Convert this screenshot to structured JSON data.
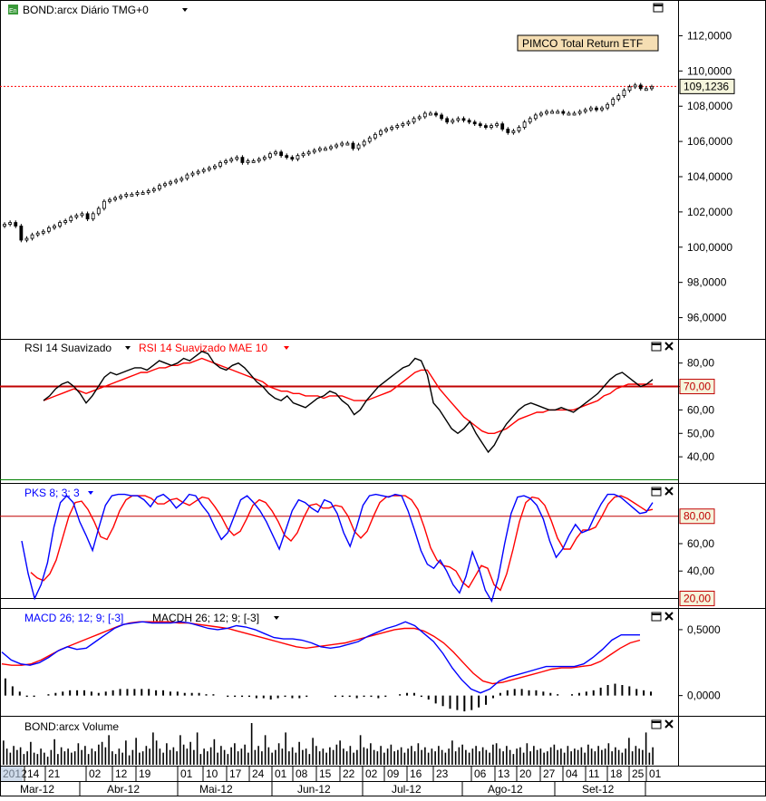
{
  "instrument_title": "BOND:arcx Diário TMG+0",
  "legend_box": "PIMCO Total Return ETF",
  "last_price_label": "109,1236",
  "panels": {
    "rsi": {
      "label_a": "RSI 14 Suavizado",
      "label_b": "RSI 14 Suavizado MAE 10",
      "level_label": "70,00"
    },
    "pks": {
      "label": "PKS 8; 3; 3",
      "upper_label": "80,00",
      "lower_label": "20,00"
    },
    "macd": {
      "label_a": "MACD 26; 12; 9; [-3]",
      "label_b": "MACDH 26; 12; 9; [-3]"
    },
    "volume": {
      "label": "BOND:arcx Volume"
    }
  },
  "colors": {
    "price": "#000000",
    "signal": "#ff0000",
    "blue_line": "#0000ff",
    "level_line": "#c00000",
    "grid_green": "#008000"
  },
  "chart_data": [
    {
      "type": "candlestick",
      "title": "BOND:arcx Diário TMG+0",
      "ylim": [
        95,
        113
      ],
      "y_ticks": [
        "112,0000",
        "110,0000",
        "108,0000",
        "106,0000",
        "104,0000",
        "102,0000",
        "100,0000",
        "98,0000",
        "96,0000"
      ],
      "y_tick_values": [
        112,
        110,
        108,
        106,
        104,
        102,
        100,
        98,
        96
      ],
      "last_value": 109.1236,
      "close": [
        101.3,
        101.4,
        101.2,
        100.4,
        100.5,
        100.7,
        100.8,
        100.9,
        101.1,
        101.2,
        101.4,
        101.5,
        101.7,
        101.8,
        101.9,
        101.6,
        101.9,
        102.2,
        102.6,
        102.7,
        102.8,
        102.9,
        103.0,
        103.0,
        103.1,
        103.1,
        103.2,
        103.3,
        103.5,
        103.6,
        103.7,
        103.8,
        103.9,
        104.1,
        104.2,
        104.3,
        104.4,
        104.5,
        104.6,
        104.8,
        104.9,
        105.0,
        105.1,
        104.8,
        104.9,
        104.9,
        105.0,
        105.1,
        105.3,
        105.4,
        105.2,
        105.1,
        105.0,
        105.2,
        105.3,
        105.4,
        105.5,
        105.6,
        105.6,
        105.7,
        105.8,
        105.9,
        105.9,
        105.6,
        105.8,
        106.0,
        106.2,
        106.4,
        106.6,
        106.7,
        106.8,
        106.9,
        107.0,
        107.1,
        107.3,
        107.4,
        107.6,
        107.6,
        107.5,
        107.3,
        107.1,
        107.2,
        107.3,
        107.2,
        107.1,
        107.0,
        106.9,
        106.8,
        106.9,
        107.0,
        106.7,
        106.5,
        106.6,
        106.8,
        107.1,
        107.3,
        107.5,
        107.6,
        107.7,
        107.7,
        107.7,
        107.6,
        107.6,
        107.6,
        107.7,
        107.8,
        107.9,
        107.8,
        107.9,
        108.1,
        108.4,
        108.6,
        108.9,
        109.1,
        109.2,
        109.0,
        109.0,
        109.1
      ],
      "x_day_ticks": [
        "2012",
        "14",
        "21",
        "02",
        "12",
        "19",
        "01",
        "10",
        "17",
        "24",
        "01",
        "08",
        "15",
        "22",
        "02",
        "09",
        "16",
        "23",
        "06",
        "13",
        "20",
        "27",
        "04",
        "11",
        "18",
        "25",
        "01"
      ],
      "x_month_labels": [
        "Mar-12",
        "Abr-12",
        "Mai-12",
        "Jun-12",
        "Jul-12",
        "Ago-12",
        "Set-12"
      ]
    },
    {
      "type": "line",
      "title": "RSI 14 Suavizado",
      "ylim": [
        30,
        88
      ],
      "y_ticks": [
        "80,00",
        "70,00",
        "60,00",
        "50,00",
        "40,00"
      ],
      "y_tick_values": [
        80,
        70,
        60,
        50,
        40
      ],
      "level": 70,
      "series": [
        {
          "name": "RSI 14 Suavizado",
          "values": [
            64,
            66,
            69,
            71,
            72,
            70,
            67,
            63,
            66,
            70,
            74,
            76,
            75,
            76,
            77,
            78,
            78,
            77,
            79,
            81,
            80,
            79,
            80,
            82,
            81,
            83,
            85,
            84,
            80,
            78,
            77,
            79,
            80,
            78,
            75,
            72,
            70,
            67,
            65,
            64,
            66,
            63,
            62,
            61,
            63,
            65,
            66,
            68,
            67,
            64,
            62,
            58,
            60,
            64,
            67,
            70,
            72,
            74,
            76,
            78,
            79,
            82,
            81,
            75,
            63,
            60,
            56,
            52,
            50,
            52,
            55,
            50,
            46,
            42,
            45,
            50,
            54,
            57,
            60,
            62,
            63,
            62,
            61,
            60,
            60,
            61,
            60,
            59,
            61,
            63,
            65,
            67,
            70,
            73,
            75,
            76,
            74,
            72,
            70,
            71,
            73
          ]
        },
        {
          "name": "RSI 14 Suavizado MAE 10",
          "values": [
            64,
            65,
            66,
            67,
            68,
            69,
            68,
            67,
            68,
            69,
            70,
            71,
            72,
            73,
            74,
            75,
            76,
            76,
            77,
            78,
            78,
            79,
            79,
            80,
            80,
            81,
            82,
            81,
            80,
            79,
            78,
            77,
            76,
            75,
            74,
            73,
            72,
            70,
            69,
            68,
            68,
            67,
            67,
            66,
            66,
            66,
            65,
            66,
            66,
            66,
            65,
            64,
            64,
            64,
            65,
            66,
            67,
            68,
            70,
            72,
            74,
            76,
            77,
            77,
            73,
            69,
            66,
            63,
            60,
            57,
            55,
            53,
            51,
            50,
            50,
            51,
            52,
            54,
            56,
            57,
            58,
            59,
            59,
            60,
            60,
            60,
            60,
            60,
            61,
            62,
            63,
            64,
            66,
            67,
            69,
            70,
            71,
            71,
            71,
            71,
            71
          ]
        }
      ]
    },
    {
      "type": "line",
      "title": "PKS 8; 3; 3",
      "ylim": [
        15,
        101
      ],
      "y_ticks": [
        "60,00",
        "40,00"
      ],
      "y_tick_values": [
        60,
        40
      ],
      "levels": [
        80,
        20
      ],
      "series": [
        {
          "name": "PKS 8; 3; 3",
          "values": [
            62,
            38,
            20,
            30,
            46,
            72,
            90,
            95,
            90,
            76,
            66,
            55,
            72,
            88,
            95,
            96,
            96,
            95,
            95,
            92,
            87,
            94,
            96,
            92,
            86,
            90,
            96,
            95,
            88,
            82,
            72,
            63,
            68,
            80,
            92,
            95,
            90,
            84,
            76,
            66,
            56,
            70,
            84,
            92,
            90,
            86,
            83,
            92,
            90,
            82,
            68,
            58,
            72,
            88,
            95,
            96,
            95,
            94,
            96,
            95,
            84,
            70,
            55,
            45,
            42,
            48,
            40,
            30,
            24,
            36,
            54,
            42,
            26,
            18,
            35,
            60,
            82,
            94,
            95,
            93,
            88,
            78,
            62,
            50,
            56,
            66,
            74,
            68,
            70,
            80,
            89,
            96,
            96,
            94,
            90,
            86,
            82,
            83,
            90
          ]
        },
        {
          "name": "Signal",
          "values": [
            39,
            35,
            33,
            38,
            48,
            64,
            80,
            90,
            91,
            85,
            76,
            65,
            63,
            72,
            84,
            92,
            95,
            95,
            95,
            93,
            89,
            89,
            92,
            93,
            90,
            88,
            91,
            94,
            93,
            87,
            80,
            71,
            66,
            69,
            78,
            88,
            92,
            90,
            84,
            76,
            66,
            62,
            68,
            79,
            88,
            89,
            86,
            86,
            88,
            87,
            80,
            69,
            64,
            69,
            80,
            90,
            94,
            95,
            95,
            95,
            92,
            85,
            72,
            57,
            48,
            44,
            43,
            40,
            32,
            28,
            36,
            44,
            42,
            30,
            26,
            38,
            56,
            76,
            90,
            94,
            93,
            88,
            77,
            64,
            56,
            56,
            64,
            70,
            70,
            72,
            80,
            89,
            94,
            95,
            93,
            90,
            87,
            84,
            85
          ]
        }
      ]
    },
    {
      "type": "line",
      "title": "MACD 26; 12; 9; [-3]",
      "ylim": [
        -0.14,
        0.63
      ],
      "y_ticks": [
        "0,5000",
        "0,0000"
      ],
      "y_tick_values": [
        0.5,
        0.0
      ],
      "series": [
        {
          "name": "MACD 26; 12; 9; [-3]",
          "values": [
            0.33,
            0.27,
            0.24,
            0.23,
            0.25,
            0.29,
            0.34,
            0.37,
            0.35,
            0.36,
            0.41,
            0.46,
            0.51,
            0.54,
            0.55,
            0.56,
            0.55,
            0.55,
            0.55,
            0.56,
            0.55,
            0.53,
            0.51,
            0.5,
            0.51,
            0.53,
            0.52,
            0.5,
            0.47,
            0.44,
            0.43,
            0.43,
            0.42,
            0.4,
            0.37,
            0.36,
            0.37,
            0.39,
            0.41,
            0.45,
            0.48,
            0.51,
            0.53,
            0.56,
            0.53,
            0.47,
            0.41,
            0.32,
            0.21,
            0.12,
            0.05,
            0.02,
            0.05,
            0.11,
            0.14,
            0.16,
            0.18,
            0.2,
            0.22,
            0.22,
            0.22,
            0.22,
            0.24,
            0.29,
            0.35,
            0.42,
            0.46,
            0.46,
            0.46
          ]
        },
        {
          "name": "Signal",
          "values": [
            0.24,
            0.23,
            0.23,
            0.24,
            0.27,
            0.31,
            0.35,
            0.38,
            0.41,
            0.44,
            0.47,
            0.5,
            0.53,
            0.55,
            0.56,
            0.56,
            0.56,
            0.56,
            0.55,
            0.55,
            0.54,
            0.53,
            0.52,
            0.51,
            0.49,
            0.47,
            0.45,
            0.43,
            0.41,
            0.39,
            0.37,
            0.36,
            0.37,
            0.38,
            0.39,
            0.4,
            0.42,
            0.44,
            0.46,
            0.48,
            0.5,
            0.51,
            0.51,
            0.49,
            0.45,
            0.4,
            0.33,
            0.25,
            0.17,
            0.11,
            0.09,
            0.1,
            0.12,
            0.14,
            0.16,
            0.18,
            0.2,
            0.21,
            0.21,
            0.22,
            0.23,
            0.26,
            0.31,
            0.36,
            0.4,
            0.42
          ]
        },
        {
          "name": "MACDH 26; 12; 9; [-3]",
          "values": [
            0.13,
            0.07,
            0.03,
            -0.01,
            -0.01,
            0.0,
            0.01,
            0.02,
            0.03,
            0.04,
            0.04,
            0.04,
            0.03,
            0.02,
            0.03,
            0.04,
            0.05,
            0.05,
            0.05,
            0.05,
            0.05,
            0.04,
            0.04,
            0.03,
            0.03,
            0.02,
            0.02,
            0.02,
            0.01,
            0.01,
            0.0,
            -0.01,
            -0.01,
            -0.01,
            -0.01,
            -0.02,
            -0.02,
            -0.03,
            -0.02,
            -0.01,
            -0.02,
            -0.02,
            -0.01,
            0.0,
            0.0,
            0.0,
            -0.01,
            -0.01,
            -0.01,
            -0.02,
            -0.01,
            -0.01,
            -0.02,
            -0.01,
            0.0,
            0.01,
            0.02,
            0.02,
            -0.01,
            -0.03,
            -0.06,
            -0.08,
            -0.1,
            -0.11,
            -0.12,
            -0.11,
            -0.09,
            -0.07,
            -0.02,
            0.02,
            0.04,
            0.05,
            0.05,
            0.04,
            0.04,
            0.03,
            0.02,
            0.01,
            0.0,
            0.01,
            0.02,
            0.03,
            0.04,
            0.06,
            0.08,
            0.09,
            0.08,
            0.07,
            0.05,
            0.04,
            0.03
          ]
        }
      ]
    },
    {
      "type": "bar",
      "title": "BOND:arcx Volume",
      "values": [
        18,
        12,
        9,
        14,
        11,
        13,
        8,
        10,
        17,
        9,
        8,
        12,
        9,
        6,
        11,
        19,
        8,
        13,
        10,
        12,
        9,
        10,
        16,
        11,
        14,
        8,
        12,
        10,
        15,
        17,
        13,
        22,
        10,
        8,
        12,
        9,
        18,
        7,
        11,
        20,
        9,
        10,
        14,
        12,
        24,
        18,
        12,
        9,
        16,
        11,
        13,
        10,
        22,
        15,
        12,
        17,
        11,
        24,
        8,
        12,
        10,
        13,
        19,
        9,
        14,
        11,
        8,
        13,
        16,
        10,
        12,
        15,
        9,
        31,
        11,
        14,
        10,
        22,
        13,
        9,
        11,
        16,
        12,
        24,
        10,
        13,
        9,
        17,
        11,
        12,
        8,
        20,
        14,
        10,
        12,
        9,
        13,
        11,
        15,
        18,
        12,
        10,
        14,
        9,
        11,
        22,
        13,
        12,
        16,
        11,
        10,
        14,
        9,
        12,
        15,
        10,
        11,
        13,
        9,
        12,
        14,
        10,
        16,
        11,
        13,
        9,
        12,
        10,
        14,
        11,
        9,
        12,
        18,
        10,
        13,
        15,
        11,
        9,
        12,
        14,
        10,
        13,
        11,
        9,
        15,
        16,
        12,
        10,
        14,
        11,
        8,
        12,
        13,
        9,
        16,
        10,
        14,
        11,
        12,
        9,
        10,
        13,
        15,
        11,
        12,
        9,
        14,
        10,
        12,
        11,
        13,
        9,
        15,
        12,
        10,
        14,
        11,
        12,
        16,
        10,
        13,
        11,
        9,
        12,
        20,
        10,
        14,
        12,
        11,
        24,
        9,
        13
      ]
    }
  ]
}
